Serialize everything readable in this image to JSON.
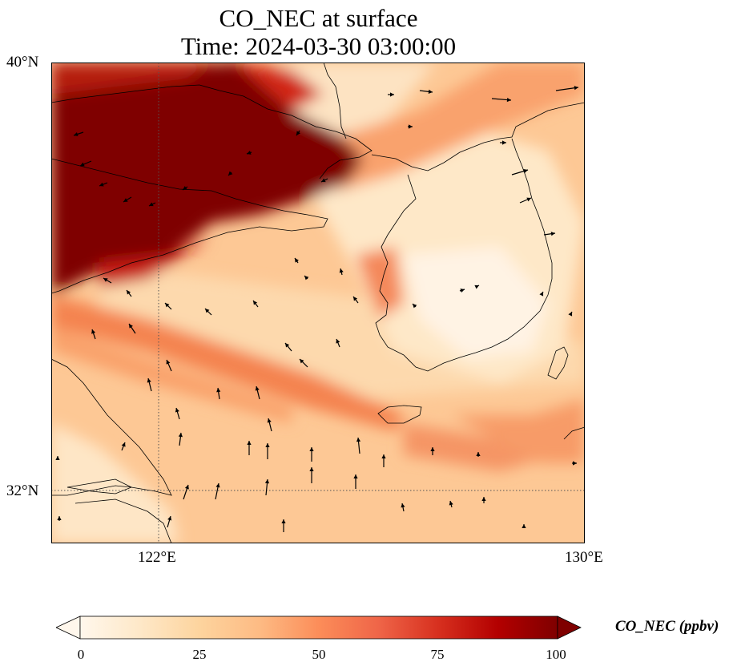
{
  "title": {
    "line1": "CO_NEC at surface",
    "line2": "Time: 2024-03-30 03:00:00"
  },
  "axes": {
    "lat_labels": [
      "40°N",
      "32°N"
    ],
    "lon_labels": [
      "122°E",
      "130°E"
    ],
    "lat_range": [
      31,
      40
    ],
    "lon_range": [
      120,
      130
    ],
    "gridlines": "dotted at 32°N and 122°E"
  },
  "colorbar": {
    "label": "CO_NEC (ppbv)",
    "ticks": [
      "0",
      "25",
      "50",
      "75",
      "100"
    ],
    "min": 0,
    "max": 100,
    "extend": "both",
    "colormap": "OrRd",
    "colors": [
      "#fff7ec",
      "#fee8c8",
      "#fdd49e",
      "#fdbb84",
      "#fc8d59",
      "#ef6548",
      "#d7301f",
      "#b30000",
      "#7f0000"
    ]
  },
  "features": {
    "high_region": "northwest (Bohai / North China Plain) >100 ppbv",
    "land_outlines": [
      "Korean Peninsula",
      "Shandong Peninsula",
      "Liaodong Peninsula",
      "Jeju Island",
      "Yangtze estuary"
    ]
  }
}
